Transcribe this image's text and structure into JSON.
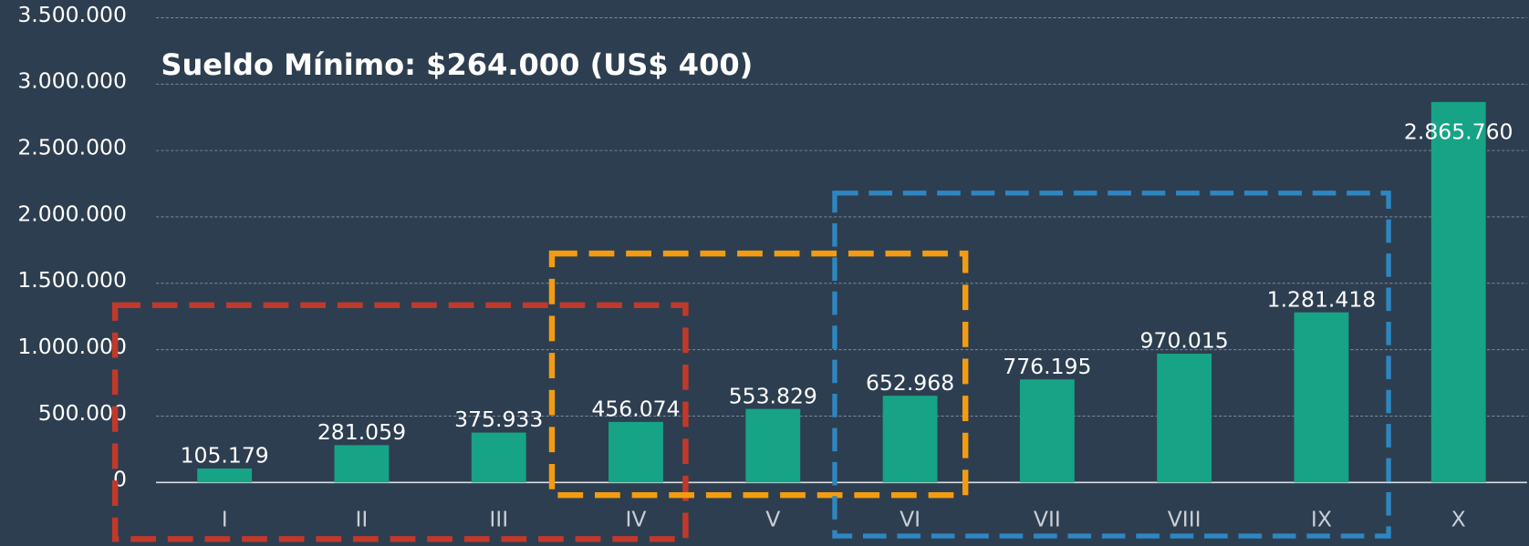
{
  "chart_data": {
    "type": "bar",
    "title": "Sueldo Mínimo: $264.000 (US$ 400)",
    "categories": [
      "I",
      "II",
      "III",
      "IV",
      "V",
      "VI",
      "VII",
      "VIII",
      "IX",
      "X"
    ],
    "values": [
      105179,
      281059,
      375933,
      456074,
      553829,
      652968,
      776195,
      970015,
      1281418,
      2865760
    ],
    "value_labels": [
      "105.179",
      "281.059",
      "375.933",
      "456.074",
      "553.829",
      "652.968",
      "776.195",
      "970.015",
      "1.281.418",
      "2.865.760"
    ],
    "color": "#17a386",
    "ylim": [
      0,
      3500000
    ],
    "yticks": [
      0,
      {
        "value": 500000,
        "label": "500.000"
      },
      {
        "value": 1000000,
        "label": "1.000.000"
      },
      {
        "value": 1500000,
        "label": "1.500.000"
      },
      {
        "value": 2000000,
        "label": "2.000.000"
      },
      {
        "value": 2500000,
        "label": "2.500.000"
      },
      {
        "value": 3000000,
        "label": "3.000.000"
      },
      {
        "value": 3500000,
        "label": "3.500.000"
      }
    ],
    "grid": true
  }
}
